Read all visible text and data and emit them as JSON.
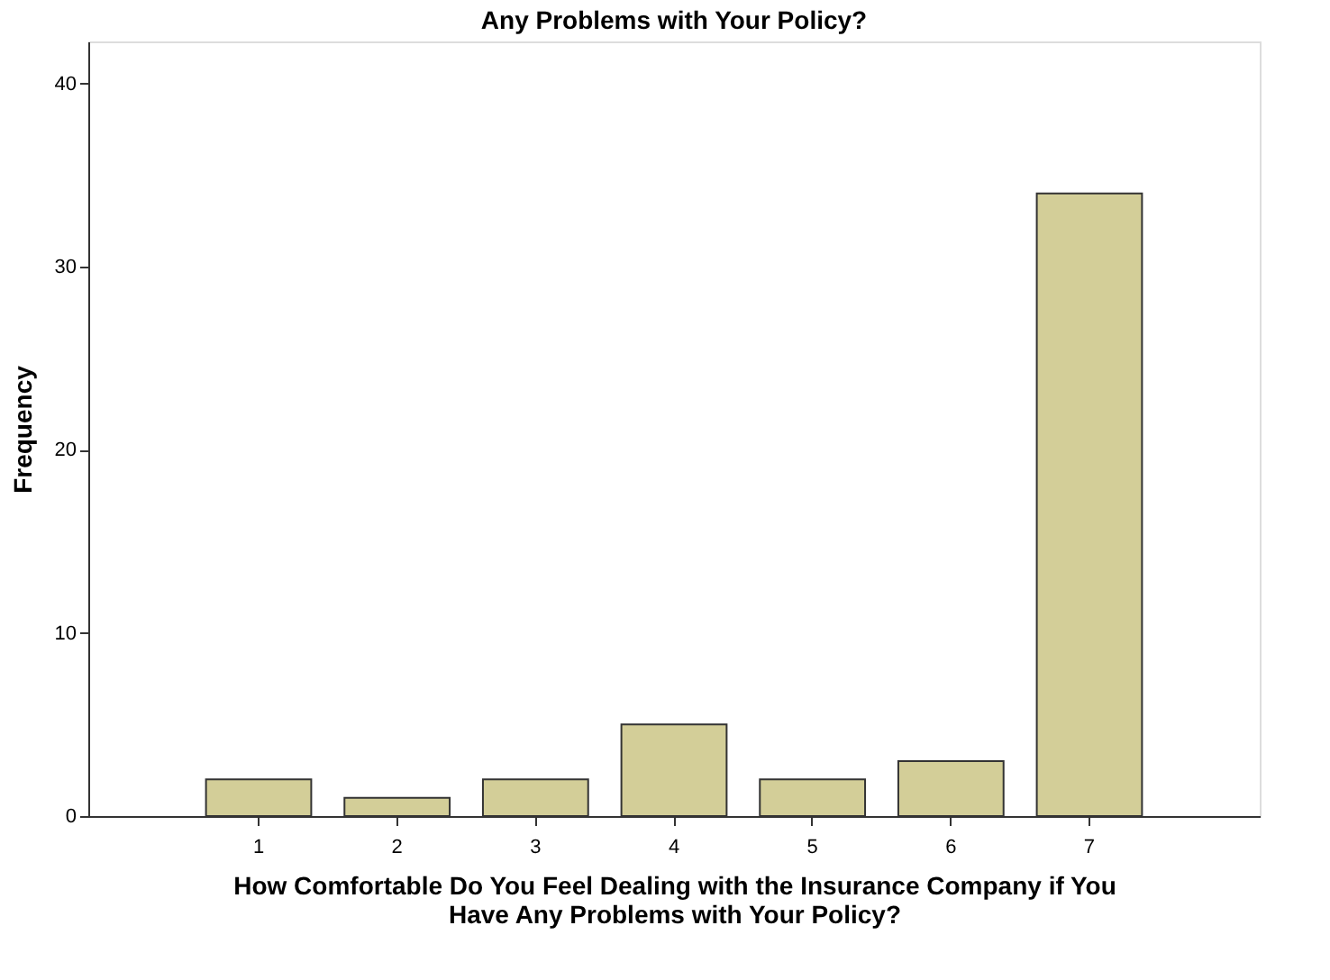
{
  "chart_data": {
    "type": "bar",
    "title": "Any Problems with Your Policy?",
    "categories": [
      "1",
      "2",
      "3",
      "4",
      "5",
      "6",
      "7"
    ],
    "values": [
      2,
      1,
      2,
      5,
      2,
      3,
      34
    ],
    "color": "#d3ce98",
    "xlabel": "How Comfortable Do You Feel Dealing with the Insurance Company if You\nHave Any Problems with Your Policy?",
    "ylabel": "Frequency",
    "ylim": [
      0,
      42.3
    ],
    "yticks": [
      0,
      10,
      20,
      30,
      40
    ],
    "grid": false
  }
}
